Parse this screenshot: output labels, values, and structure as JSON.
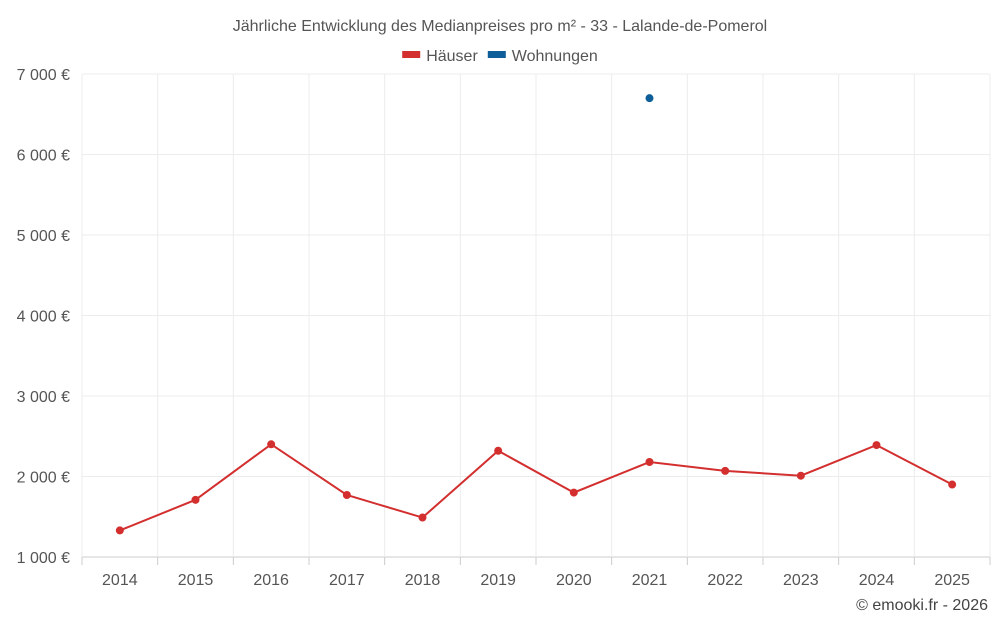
{
  "chart_data": {
    "type": "line",
    "title": "Jährliche Entwicklung des Medianpreises pro m² - 33 - Lalande-de-Pomerol",
    "x": [
      "2014",
      "2015",
      "2016",
      "2017",
      "2018",
      "2019",
      "2020",
      "2021",
      "2022",
      "2023",
      "2024",
      "2025"
    ],
    "series": [
      {
        "name": "Häuser",
        "color": "#d32f2f",
        "values": [
          1330,
          1710,
          2400,
          1770,
          1490,
          2320,
          1800,
          2180,
          2070,
          2010,
          2390,
          1900
        ]
      },
      {
        "name": "Wohnungen",
        "color": "#0d5e99",
        "values": [
          null,
          null,
          null,
          null,
          null,
          null,
          null,
          6700,
          null,
          null,
          null,
          null
        ]
      }
    ],
    "ylim": [
      1000,
      7000
    ],
    "yticks": [
      1000,
      2000,
      3000,
      4000,
      5000,
      6000,
      7000
    ],
    "ytick_labels": [
      "1 000 €",
      "2 000 €",
      "3 000 €",
      "4 000 €",
      "5 000 €",
      "6 000 €",
      "7 000 €"
    ],
    "grid": true,
    "legend_position": "top-center"
  },
  "credit": "© emooki.fr - 2026"
}
